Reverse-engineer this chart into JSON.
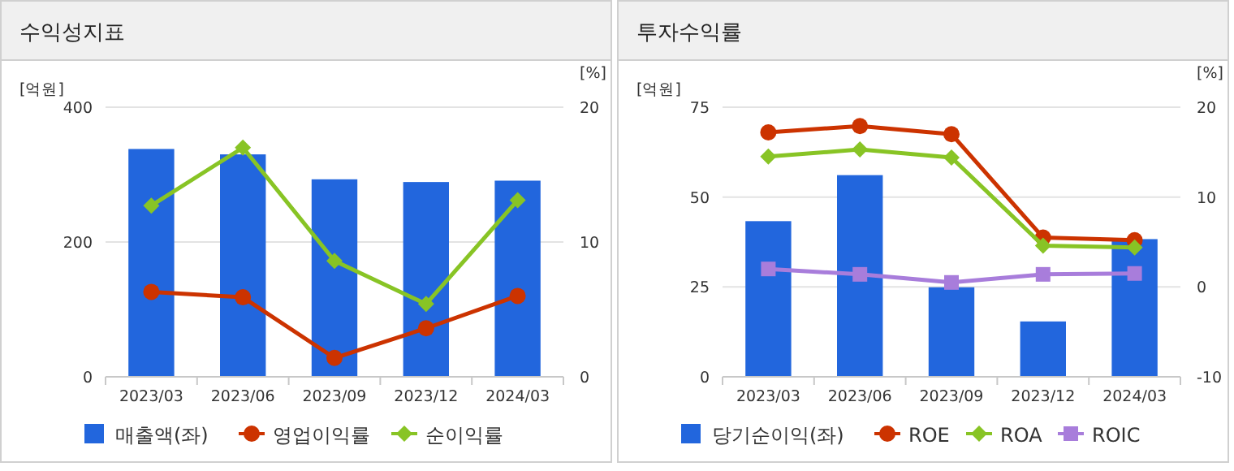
{
  "chart_data": [
    {
      "type": "bar",
      "title": "수익성지표",
      "ylabel": "[억원]",
      "y2label": "[%]",
      "categories": [
        "2023/03",
        "2023/06",
        "2023/09",
        "2023/12",
        "2024/03"
      ],
      "ylim": [
        0,
        400
      ],
      "yticks": [
        0,
        200,
        400
      ],
      "y2lim": [
        0,
        20
      ],
      "y2ticks": [
        0,
        10,
        20
      ],
      "grid": "y",
      "legend": "bottom",
      "series": [
        {
          "name": "매출액(좌)",
          "color": "#2266dd",
          "values": [
            338,
            330,
            293,
            289,
            291
          ]
        },
        {
          "name": "영업이익률",
          "type": "line",
          "axis": "y2",
          "marker": "circle",
          "color": "#cc3300",
          "values": [
            6.3,
            5.9,
            1.4,
            3.6,
            6.0
          ]
        },
        {
          "name": "순이익률",
          "type": "line",
          "axis": "y2",
          "marker": "diamond",
          "color": "#88c425",
          "values": [
            12.7,
            17.0,
            8.6,
            5.4,
            13.1
          ]
        }
      ]
    },
    {
      "type": "bar",
      "title": "투자수익률",
      "ylabel": "[억원]",
      "y2label": "[%]",
      "categories": [
        "2023/03",
        "2023/06",
        "2023/09",
        "2023/12",
        "2024/03"
      ],
      "ylim": [
        0,
        75
      ],
      "yticks": [
        0,
        25,
        50,
        75
      ],
      "y2lim": [
        -10,
        20
      ],
      "y2ticks": [
        -10,
        0,
        10,
        20
      ],
      "grid": "y",
      "legend": "bottom",
      "series": [
        {
          "name": "당기순이익(좌)",
          "color": "#2266dd",
          "values": [
            43.3,
            56.1,
            24.9,
            15.4,
            38.3
          ]
        },
        {
          "name": "ROE",
          "type": "line",
          "axis": "y2",
          "marker": "circle",
          "color": "#cc3300",
          "values": [
            17.2,
            17.9,
            17.0,
            5.5,
            5.2
          ]
        },
        {
          "name": "ROA",
          "type": "line",
          "axis": "y2",
          "marker": "diamond",
          "color": "#88c425",
          "values": [
            14.5,
            15.3,
            14.4,
            4.6,
            4.4
          ]
        },
        {
          "name": "ROIC",
          "type": "line",
          "axis": "y2",
          "marker": "square",
          "color": "#a87ddb",
          "values": [
            2.0,
            1.4,
            0.5,
            1.4,
            1.5
          ]
        }
      ]
    }
  ]
}
